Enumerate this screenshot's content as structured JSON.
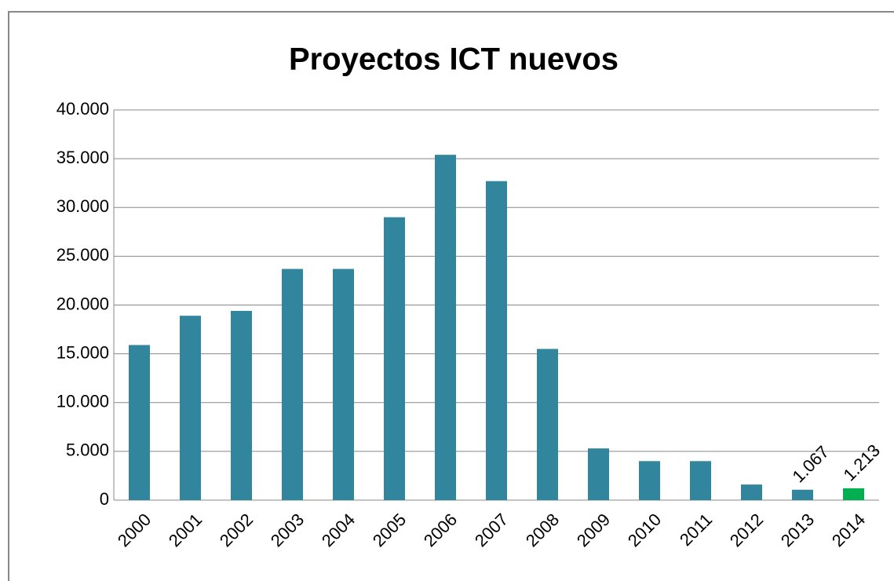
{
  "chart_data": {
    "type": "bar",
    "title": "Proyectos ICT nuevos",
    "categories": [
      "2000",
      "2001",
      "2002",
      "2003",
      "2004",
      "2005",
      "2006",
      "2007",
      "2008",
      "2009",
      "2010",
      "2011",
      "2012",
      "2013",
      "2014"
    ],
    "values": [
      15900,
      18900,
      19400,
      23700,
      23700,
      29000,
      35400,
      32700,
      15500,
      5300,
      4000,
      4000,
      1600,
      1067,
      1213
    ],
    "value_labels": [
      null,
      null,
      null,
      null,
      null,
      null,
      null,
      null,
      null,
      null,
      null,
      null,
      null,
      "1.067",
      "1.213"
    ],
    "colors": [
      "#31859c",
      "#31859c",
      "#31859c",
      "#31859c",
      "#31859c",
      "#31859c",
      "#31859c",
      "#31859c",
      "#31859c",
      "#31859c",
      "#31859c",
      "#31859c",
      "#31859c",
      "#31859c",
      "#00b050"
    ],
    "ylim": [
      0,
      40000
    ],
    "yticks": [
      0,
      {
        "value": 5000,
        "label": "5.000"
      },
      {
        "value": 10000,
        "label": "10.000"
      },
      {
        "value": 15000,
        "label": "15.000"
      },
      {
        "value": 20000,
        "label": "20.000"
      },
      {
        "value": 25000,
        "label": "25.000"
      },
      {
        "value": 30000,
        "label": "30.000"
      },
      {
        "value": 35000,
        "label": "35.000"
      },
      {
        "value": 40000,
        "label": "40.000"
      }
    ],
    "grid": true
  }
}
